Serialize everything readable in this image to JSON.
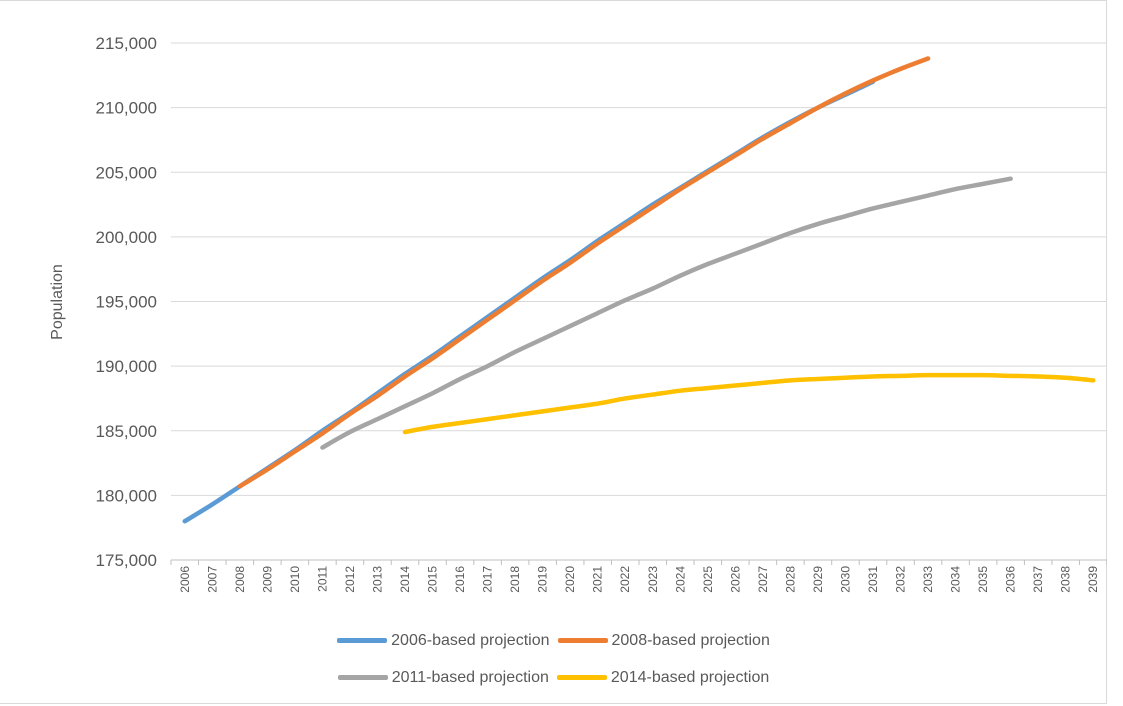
{
  "chart_data": {
    "type": "line",
    "title": "",
    "xlabel": "",
    "ylabel": "Population",
    "ylim": [
      175000,
      215000
    ],
    "y_ticks": [
      175000,
      180000,
      185000,
      190000,
      195000,
      200000,
      205000,
      210000,
      215000
    ],
    "y_tick_labels": [
      "175,000",
      "180,000",
      "185,000",
      "190,000",
      "195,000",
      "200,000",
      "205,000",
      "210,000",
      "215,000"
    ],
    "x": [
      "2006",
      "2007",
      "2008",
      "2009",
      "2010",
      "2011",
      "2012",
      "2013",
      "2014",
      "2015",
      "2016",
      "2017",
      "2018",
      "2019",
      "2020",
      "2021",
      "2022",
      "2023",
      "2024",
      "2025",
      "2026",
      "2027",
      "2028",
      "2029",
      "2030",
      "2031",
      "2032",
      "2033",
      "2034",
      "2035",
      "2036",
      "2037",
      "2038",
      "2039"
    ],
    "grid": "horizontal",
    "legend_position": "bottom",
    "series": [
      {
        "name": "2006-based projection",
        "color": "#5b9bd5",
        "x": [
          "2006",
          "2007",
          "2008",
          "2009",
          "2010",
          "2011",
          "2012",
          "2013",
          "2014",
          "2015",
          "2016",
          "2017",
          "2018",
          "2019",
          "2020",
          "2021",
          "2022",
          "2023",
          "2024",
          "2025",
          "2026",
          "2027",
          "2028",
          "2029",
          "2030",
          "2031"
        ],
        "values": [
          178000,
          179300,
          180700,
          182100,
          183500,
          185000,
          186400,
          187900,
          189400,
          190800,
          192300,
          193800,
          195300,
          196800,
          198200,
          199700,
          201100,
          202500,
          203800,
          205100,
          206400,
          207700,
          208900,
          210000,
          211000,
          212000
        ]
      },
      {
        "name": "2008-based projection",
        "color": "#ed7d31",
        "x": [
          "2008",
          "2009",
          "2010",
          "2011",
          "2012",
          "2013",
          "2014",
          "2015",
          "2016",
          "2017",
          "2018",
          "2019",
          "2020",
          "2021",
          "2022",
          "2023",
          "2024",
          "2025",
          "2026",
          "2027",
          "2028",
          "2029",
          "2030",
          "2031",
          "2032",
          "2033"
        ],
        "values": [
          180700,
          182000,
          183400,
          184800,
          186300,
          187700,
          189200,
          190600,
          192100,
          193600,
          195100,
          196600,
          198000,
          199500,
          200900,
          202300,
          203700,
          205000,
          206300,
          207600,
          208800,
          210000,
          211100,
          212100,
          213000,
          213800
        ]
      },
      {
        "name": "2011-based projection",
        "color": "#a5a5a5",
        "x": [
          "2011",
          "2012",
          "2013",
          "2014",
          "2015",
          "2016",
          "2017",
          "2018",
          "2019",
          "2020",
          "2021",
          "2022",
          "2023",
          "2024",
          "2025",
          "2026",
          "2027",
          "2028",
          "2029",
          "2030",
          "2031",
          "2032",
          "2033",
          "2034",
          "2035",
          "2036"
        ],
        "values": [
          183700,
          184900,
          185900,
          186900,
          187900,
          189000,
          190000,
          191100,
          192100,
          193100,
          194100,
          195100,
          196000,
          197000,
          197900,
          198700,
          199500,
          200300,
          201000,
          201600,
          202200,
          202700,
          203200,
          203700,
          204100,
          204500
        ]
      },
      {
        "name": "2014-based projection",
        "color": "#ffc000",
        "x": [
          "2014",
          "2015",
          "2016",
          "2017",
          "2018",
          "2019",
          "2020",
          "2021",
          "2022",
          "2023",
          "2024",
          "2025",
          "2026",
          "2027",
          "2028",
          "2029",
          "2030",
          "2031",
          "2032",
          "2033",
          "2034",
          "2035",
          "2036",
          "2037",
          "2038",
          "2039"
        ],
        "values": [
          184900,
          185300,
          185600,
          185900,
          186200,
          186500,
          186800,
          187100,
          187500,
          187800,
          188100,
          188300,
          188500,
          188700,
          188900,
          189000,
          189100,
          189200,
          189250,
          189300,
          189300,
          189300,
          189250,
          189200,
          189100,
          188900
        ]
      }
    ]
  }
}
